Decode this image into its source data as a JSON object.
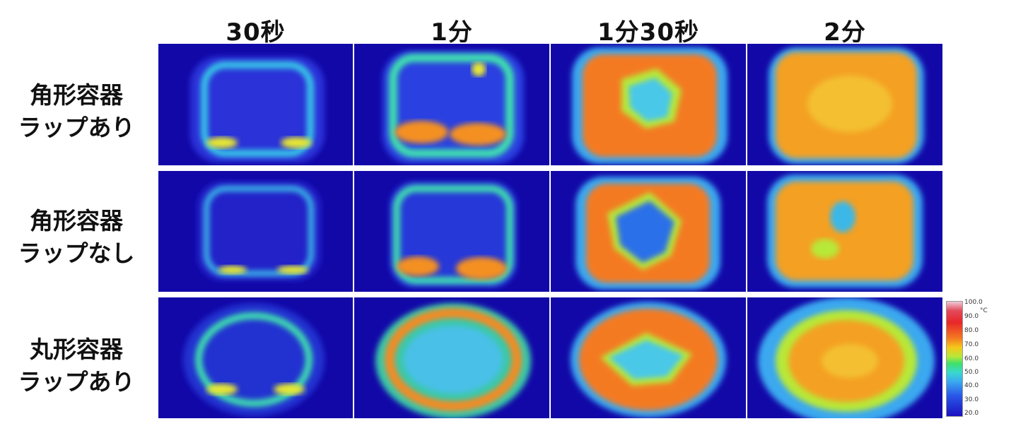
{
  "columns": [
    "30秒",
    "1分",
    "1分30秒",
    "2分"
  ],
  "rows": [
    {
      "line1": "角形容器",
      "line2": "ラップあり"
    },
    {
      "line1": "角形容器",
      "line2": "ラップなし"
    },
    {
      "line1": "丸形容器",
      "line2": "ラップあり"
    }
  ],
  "scale": {
    "unit": "°C",
    "ticks": [
      "100.0",
      "90.0",
      "80.0",
      "70.0",
      "60.0",
      "50.0",
      "40.0",
      "30.0",
      "20.0"
    ]
  }
}
